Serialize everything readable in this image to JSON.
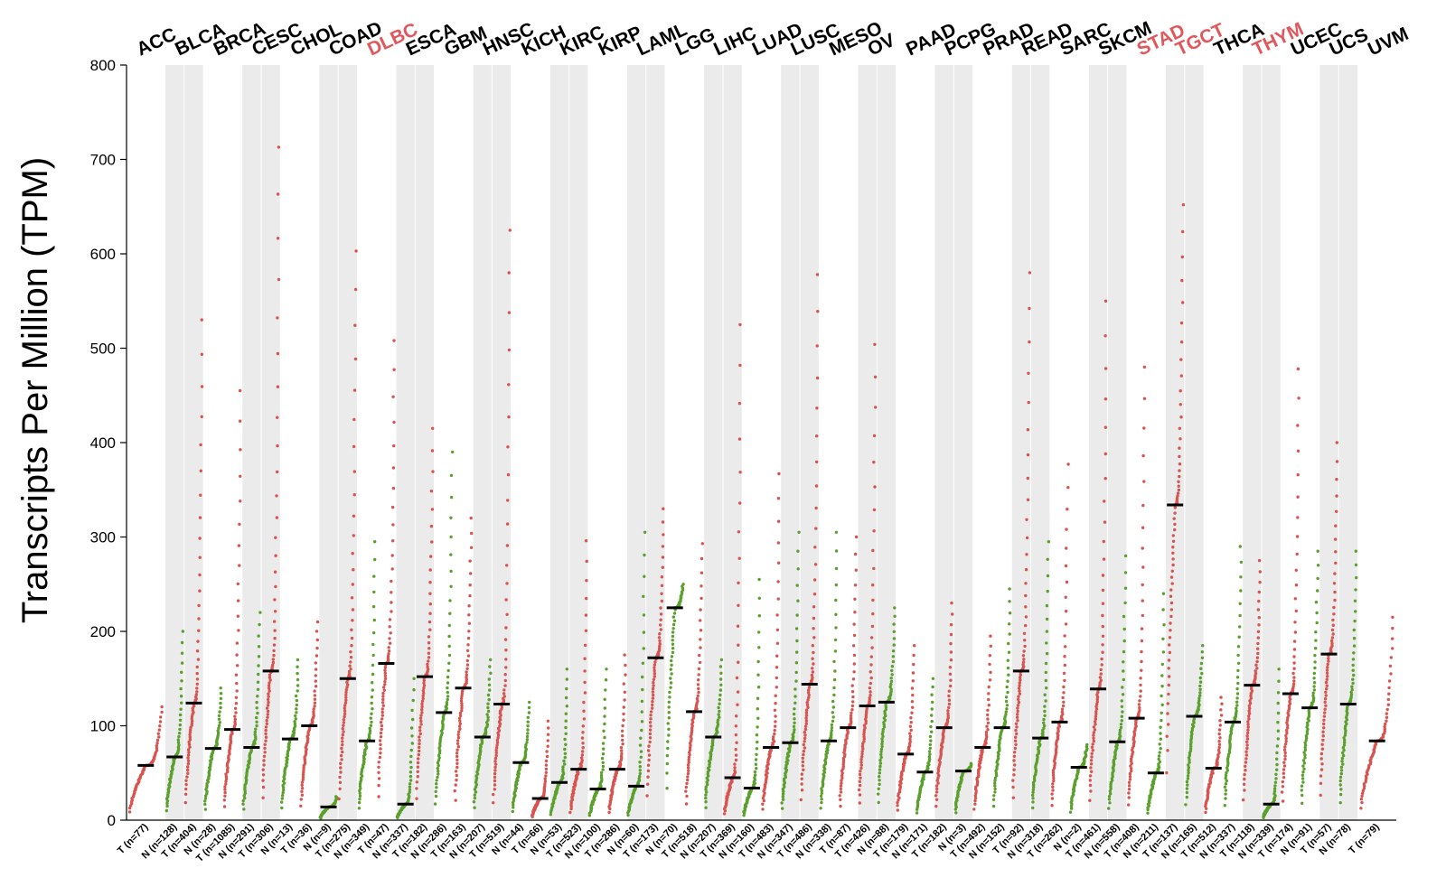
{
  "chart_data": {
    "type": "scatter",
    "ylabel": "Transcripts Per Million (TPM)",
    "ylim": [
      0,
      800
    ],
    "yticks": [
      0,
      100,
      200,
      300,
      400,
      500,
      600,
      700,
      800
    ],
    "series_colors": {
      "T": "#d9534f",
      "N": "#5aa02c"
    },
    "highlight_color": "#e0575c",
    "cancers": [
      {
        "name": "ACC",
        "highlight": false,
        "groups": [
          {
            "label": "T (n=77)",
            "type": "T",
            "median": 58,
            "max": 120
          }
        ]
      },
      {
        "name": "BLCA",
        "highlight": false,
        "groups": [
          {
            "label": "N (n=128)",
            "type": "N",
            "median": 67,
            "max": 200
          },
          {
            "label": "T (n=404)",
            "type": "T",
            "median": 124,
            "max": 530
          }
        ]
      },
      {
        "name": "BRCA",
        "highlight": false,
        "groups": [
          {
            "label": "N (n=28)",
            "type": "N",
            "median": 76,
            "max": 140
          },
          {
            "label": "T (n=1085)",
            "type": "T",
            "median": 96,
            "max": 455
          }
        ]
      },
      {
        "name": "CESC",
        "highlight": false,
        "groups": [
          {
            "label": "N (n=291)",
            "type": "N",
            "median": 77,
            "max": 220
          },
          {
            "label": "T (n=306)",
            "type": "T",
            "median": 158,
            "max": 713
          }
        ]
      },
      {
        "name": "CHOL",
        "highlight": false,
        "groups": [
          {
            "label": "N (n=13)",
            "type": "N",
            "median": 86,
            "max": 170
          },
          {
            "label": "T (n=36)",
            "type": "T",
            "median": 100,
            "max": 210
          }
        ]
      },
      {
        "name": "COAD",
        "highlight": false,
        "groups": [
          {
            "label": "N (n=9)",
            "type": "N",
            "median": 14,
            "max": 25
          },
          {
            "label": "T (n=275)",
            "type": "T",
            "median": 150,
            "max": 603
          }
        ]
      },
      {
        "name": "DLBC",
        "highlight": true,
        "groups": [
          {
            "label": "N (n=349)",
            "type": "N",
            "median": 84,
            "max": 295
          },
          {
            "label": "T (n=47)",
            "type": "T",
            "median": 166,
            "max": 508
          }
        ]
      },
      {
        "name": "ESCA",
        "highlight": false,
        "groups": [
          {
            "label": "N (n=337)",
            "type": "N",
            "median": 17,
            "max": 150
          },
          {
            "label": "T (n=182)",
            "type": "T",
            "median": 152,
            "max": 415
          }
        ]
      },
      {
        "name": "GBM",
        "highlight": false,
        "groups": [
          {
            "label": "N (n=286)",
            "type": "N",
            "median": 114,
            "max": 390
          },
          {
            "label": "T (n=163)",
            "type": "T",
            "median": 140,
            "max": 320
          }
        ]
      },
      {
        "name": "HNSC",
        "highlight": false,
        "groups": [
          {
            "label": "N (n=207)",
            "type": "N",
            "median": 88,
            "max": 170
          },
          {
            "label": "T (n=519)",
            "type": "T",
            "median": 123,
            "max": 625
          }
        ]
      },
      {
        "name": "KICH",
        "highlight": false,
        "groups": [
          {
            "label": "N (n=44)",
            "type": "N",
            "median": 61,
            "max": 125
          },
          {
            "label": "T (n=66)",
            "type": "T",
            "median": 23,
            "max": 105
          }
        ]
      },
      {
        "name": "KIRC",
        "highlight": false,
        "groups": [
          {
            "label": "N (n=53)",
            "type": "N",
            "median": 40,
            "max": 160
          },
          {
            "label": "T (n=523)",
            "type": "T",
            "median": 54,
            "max": 296
          }
        ]
      },
      {
        "name": "KIRP",
        "highlight": false,
        "groups": [
          {
            "label": "N (n=100)",
            "type": "N",
            "median": 33,
            "max": 160
          },
          {
            "label": "T (n=286)",
            "type": "T",
            "median": 54,
            "max": 175
          }
        ]
      },
      {
        "name": "LAML",
        "highlight": false,
        "groups": [
          {
            "label": "N (n=60)",
            "type": "N",
            "median": 36,
            "max": 305
          },
          {
            "label": "T (n=173)",
            "type": "T",
            "median": 172,
            "max": 330
          }
        ]
      },
      {
        "name": "LGG",
        "highlight": false,
        "groups": [
          {
            "label": "N (n=70)",
            "type": "N",
            "median": 225,
            "max": 250
          },
          {
            "label": "T (n=518)",
            "type": "T",
            "median": 115,
            "max": 293
          }
        ]
      },
      {
        "name": "LIHC",
        "highlight": false,
        "groups": [
          {
            "label": "N (n=207)",
            "type": "N",
            "median": 88,
            "max": 170
          },
          {
            "label": "T (n=369)",
            "type": "T",
            "median": 45,
            "max": 525
          }
        ]
      },
      {
        "name": "LUAD",
        "highlight": false,
        "groups": [
          {
            "label": "N (n=160)",
            "type": "N",
            "median": 34,
            "max": 255
          },
          {
            "label": "T (n=483)",
            "type": "T",
            "median": 77,
            "max": 367
          }
        ]
      },
      {
        "name": "LUSC",
        "highlight": false,
        "groups": [
          {
            "label": "N (n=347)",
            "type": "N",
            "median": 82,
            "max": 305
          },
          {
            "label": "T (n=486)",
            "type": "T",
            "median": 144,
            "max": 578
          }
        ]
      },
      {
        "name": "MESO",
        "highlight": false,
        "groups": [
          {
            "label": "N (n=338)",
            "type": "N",
            "median": 84,
            "max": 305
          },
          {
            "label": "T (n=87)",
            "type": "T",
            "median": 98,
            "max": 300
          }
        ]
      },
      {
        "name": "OV",
        "highlight": false,
        "groups": [
          {
            "label": "T (n=426)",
            "type": "T",
            "median": 121,
            "max": 504
          },
          {
            "label": "N (n=88)",
            "type": "N",
            "median": 125,
            "max": 225
          }
        ]
      },
      {
        "name": "PAAD",
        "highlight": false,
        "groups": [
          {
            "label": "T (n=179)",
            "type": "T",
            "median": 70,
            "max": 185
          },
          {
            "label": "N (n=171)",
            "type": "N",
            "median": 51,
            "max": 150
          }
        ]
      },
      {
        "name": "PCPG",
        "highlight": false,
        "groups": [
          {
            "label": "T (n=182)",
            "type": "T",
            "median": 98,
            "max": 230
          },
          {
            "label": "N (n=3)",
            "type": "N",
            "median": 52,
            "max": 60
          }
        ]
      },
      {
        "name": "PRAD",
        "highlight": false,
        "groups": [
          {
            "label": "T (n=492)",
            "type": "T",
            "median": 77,
            "max": 195
          },
          {
            "label": "N (n=152)",
            "type": "N",
            "median": 98,
            "max": 245
          }
        ]
      },
      {
        "name": "READ",
        "highlight": false,
        "groups": [
          {
            "label": "T (n=92)",
            "type": "T",
            "median": 158,
            "max": 580
          },
          {
            "label": "N (n=318)",
            "type": "N",
            "median": 87,
            "max": 295
          }
        ]
      },
      {
        "name": "SARC",
        "highlight": false,
        "groups": [
          {
            "label": "T (n=262)",
            "type": "T",
            "median": 104,
            "max": 377
          },
          {
            "label": "N (n=2)",
            "type": "N",
            "median": 56,
            "max": 80
          }
        ]
      },
      {
        "name": "SKCM",
        "highlight": false,
        "groups": [
          {
            "label": "T (n=461)",
            "type": "T",
            "median": 139,
            "max": 550
          },
          {
            "label": "N (n=558)",
            "type": "N",
            "median": 83,
            "max": 280
          }
        ]
      },
      {
        "name": "STAD",
        "highlight": true,
        "groups": [
          {
            "label": "T (n=408)",
            "type": "T",
            "median": 108,
            "max": 480
          },
          {
            "label": "N (n=211)",
            "type": "N",
            "median": 50,
            "max": 240
          }
        ]
      },
      {
        "name": "TGCT",
        "highlight": true,
        "groups": [
          {
            "label": "T (n=137)",
            "type": "T",
            "median": 334,
            "max": 652
          },
          {
            "label": "N (n=165)",
            "type": "N",
            "median": 110,
            "max": 185
          }
        ]
      },
      {
        "name": "THCA",
        "highlight": false,
        "groups": [
          {
            "label": "T (n=512)",
            "type": "T",
            "median": 55,
            "max": 130
          },
          {
            "label": "N (n=337)",
            "type": "N",
            "median": 104,
            "max": 290
          }
        ]
      },
      {
        "name": "THYM",
        "highlight": true,
        "groups": [
          {
            "label": "T (n=118)",
            "type": "T",
            "median": 143,
            "max": 275
          },
          {
            "label": "N (n=339)",
            "type": "N",
            "median": 17,
            "max": 160
          }
        ]
      },
      {
        "name": "UCEC",
        "highlight": false,
        "groups": [
          {
            "label": "T (n=174)",
            "type": "T",
            "median": 134,
            "max": 478
          },
          {
            "label": "N (n=91)",
            "type": "N",
            "median": 119,
            "max": 285
          }
        ]
      },
      {
        "name": "UCS",
        "highlight": false,
        "groups": [
          {
            "label": "T (n=57)",
            "type": "T",
            "median": 176,
            "max": 400
          },
          {
            "label": "N (n=78)",
            "type": "N",
            "median": 123,
            "max": 285
          }
        ]
      },
      {
        "name": "UVM",
        "highlight": false,
        "groups": [
          {
            "label": "T (n=79)",
            "type": "T",
            "median": 84,
            "max": 215
          }
        ]
      }
    ]
  }
}
